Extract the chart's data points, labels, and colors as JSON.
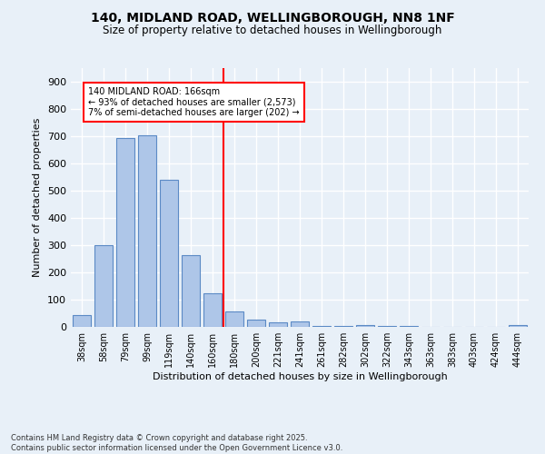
{
  "title_line1": "140, MIDLAND ROAD, WELLINGBOROUGH, NN8 1NF",
  "title_line2": "Size of property relative to detached houses in Wellingborough",
  "xlabel": "Distribution of detached houses by size in Wellingborough",
  "ylabel": "Number of detached properties",
  "bar_labels": [
    "38sqm",
    "58sqm",
    "79sqm",
    "99sqm",
    "119sqm",
    "140sqm",
    "160sqm",
    "180sqm",
    "200sqm",
    "221sqm",
    "241sqm",
    "261sqm",
    "282sqm",
    "302sqm",
    "322sqm",
    "343sqm",
    "363sqm",
    "383sqm",
    "403sqm",
    "424sqm",
    "444sqm"
  ],
  "bar_values": [
    45,
    300,
    695,
    705,
    540,
    265,
    122,
    57,
    27,
    18,
    20,
    5,
    5,
    8,
    2,
    3,
    0,
    1,
    0,
    0,
    7
  ],
  "bar_color": "#aec6e8",
  "bar_edge_color": "#5b8ac5",
  "annotation_text_line1": "140 MIDLAND ROAD: 166sqm",
  "annotation_text_line2": "← 93% of detached houses are smaller (2,573)",
  "annotation_text_line3": "7% of semi-detached houses are larger (202) →",
  "annotation_box_color": "white",
  "annotation_box_edge_color": "red",
  "vline_color": "red",
  "ylim": [
    0,
    950
  ],
  "yticks": [
    0,
    100,
    200,
    300,
    400,
    500,
    600,
    700,
    800,
    900
  ],
  "footer_line1": "Contains HM Land Registry data © Crown copyright and database right 2025.",
  "footer_line2": "Contains public sector information licensed under the Open Government Licence v3.0.",
  "bg_color": "#e8f0f8",
  "plot_bg_color": "#e8f0f8",
  "grid_color": "white"
}
